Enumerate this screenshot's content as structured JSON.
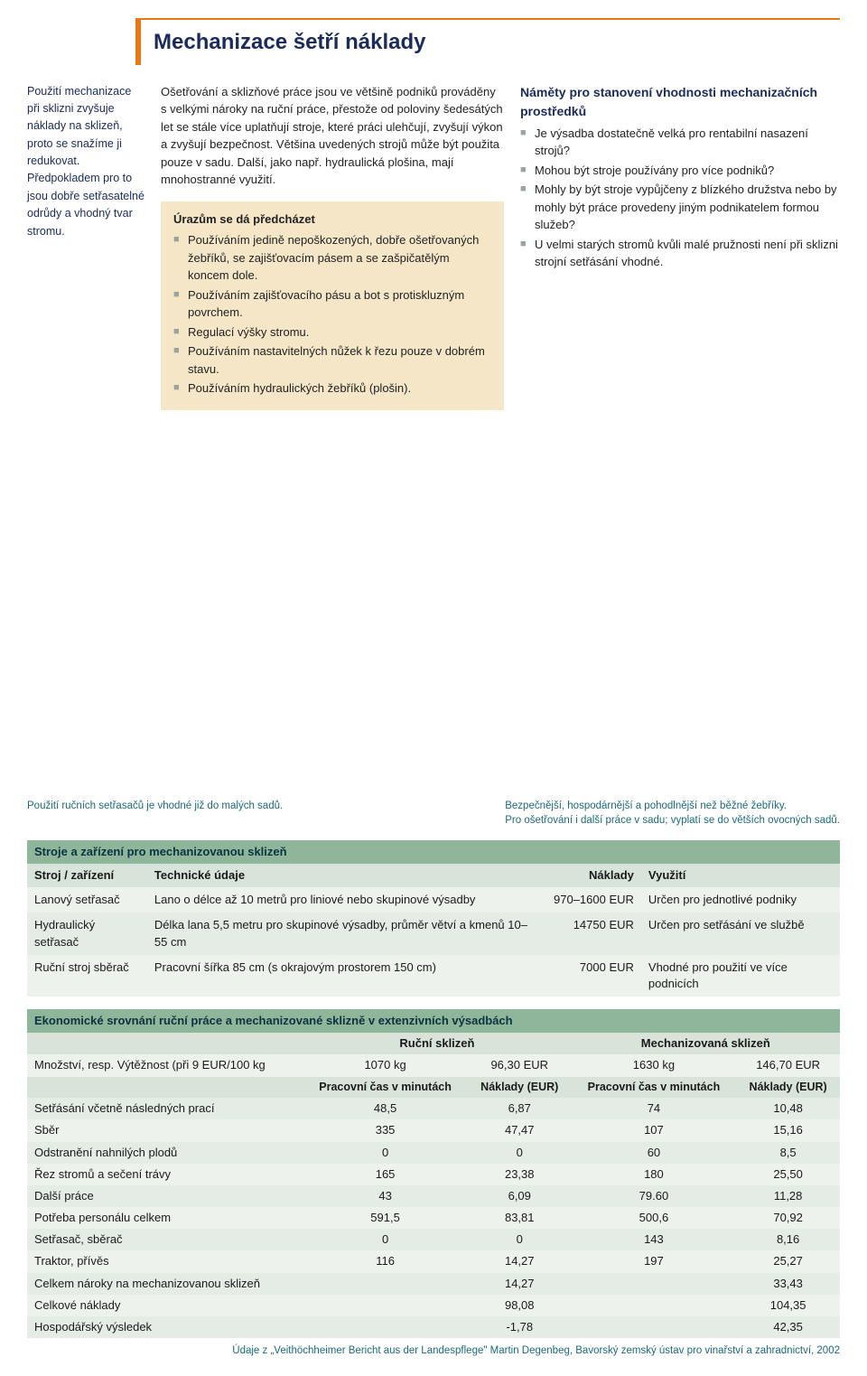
{
  "title": "Mechanizace šetří náklady",
  "sidebar_intro": "Použití mechanizace při sklizni zvyšuje náklady na sklizeň, proto se snažíme ji redukovat. Předpokladem pro to jsou dobře setřasatelné odrůdy a vhodný tvar stromu.",
  "mid_para": "Ošetřování a sklizňové práce jsou ve většině podniků prováděny s velkými nároky na ruční práce, přestože od poloviny šedesátých let se stále více uplatňují stroje, které práci ulehčují, zvyšují výkon a zvyšují bezpečnost. Většina uvedených strojů může být použita pouze v sadu. Další, jako např. hydraulická plošina, mají mnohostranné využití.",
  "box": {
    "heading": "Úrazům se dá předcházet",
    "items": [
      "Používáním jedině nepoškozených, dobře ošetřovaných žebříků, se zajišťovacím pásem a se zašpičatělým koncem dole.",
      "Používáním zajišťovacího pásu a bot s protiskluzným povrchem.",
      "Regulací výšky stromu.",
      "Používáním nastavitelných nůžek k řezu pouze v dobrém stavu.",
      "Používáním hydraulických žebříků (plošin)."
    ]
  },
  "right": {
    "heading": "Náměty pro stanovení vhodnosti mechanizačních prostředků",
    "items": [
      "Je výsadba dostatečně velká pro rentabilní nasazení strojů?",
      "Mohou být stroje používány pro více podniků?",
      "Mohly by být stroje vypůjčeny z blízkého družstva nebo by mohly být práce provedeny jiným podnikatelem formou služeb?",
      "U velmi starých stromů kvůli malé pružnosti není při sklizni strojní setřásání vhodné."
    ]
  },
  "caption_left": "Použití ručních setřasačů je vhodné již do malých sadů.",
  "caption_right_1": "Bezpečnější, hospodárnější a pohodlnější než běžné žebříky.",
  "caption_right_2": "Pro ošetřování i další práce v sadu; vyplatí se do větších ovocných sadů.",
  "table1": {
    "title": "Stroje a zařízení pro mechanizovanou sklizeň",
    "cols": [
      "Stroj / zařízení",
      "Technické údaje",
      "Náklady",
      "Využití"
    ],
    "rows": [
      [
        "Lanový setřasač",
        "Lano o délce až 10 metrů pro liniové nebo skupinové výsadby",
        "970–1600 EUR",
        "Určen pro jednotlivé podniky"
      ],
      [
        "Hydraulický setřasač",
        "Délka lana 5,5 metru pro skupinové výsadby, průměr větví a kmenů 10–55 cm",
        "14750 EUR",
        "Určen pro setřásání ve službě"
      ],
      [
        "Ruční stroj sběrač",
        "Pracovní šířka 85 cm (s okrajovým prostorem 150 cm)",
        "7000 EUR",
        "Vhodné pro použití ve více podnicích"
      ]
    ]
  },
  "table2": {
    "title": "Ekonomické srovnání ruční práce a mechanizované sklizně v extenzivních výsadbách",
    "group_headers": [
      "Ruční sklizeň",
      "Mechanizovaná sklizeň"
    ],
    "yield_label": "Množství, resp. Výtěžnost (při 9 EUR/100 kg",
    "yield_vals": [
      "1070 kg",
      "96,30 EUR",
      "1630 kg",
      "146,70 EUR"
    ],
    "sub_headers": [
      "Pracovní čas v minutách",
      "Náklady (EUR)",
      "Pracovní čas v minutách",
      "Náklady (EUR)"
    ],
    "rows": [
      [
        "Setřásání včetně následných prací",
        "48,5",
        "6,87",
        "74",
        "10,48"
      ],
      [
        "Sběr",
        "335",
        "47,47",
        "107",
        "15,16"
      ],
      [
        "Odstranění nahnilých plodů",
        "0",
        "0",
        "60",
        "8,5"
      ],
      [
        "Řez stromů a sečení trávy",
        "165",
        "23,38",
        "180",
        "25,50"
      ],
      [
        "Další práce",
        "43",
        "6,09",
        "79.60",
        "11,28"
      ],
      [
        "Potřeba personálu celkem",
        "591,5",
        "83,81",
        "500,6",
        "70,92"
      ],
      [
        "Setřasač, sběrač",
        "0",
        "0",
        "143",
        "8,16"
      ],
      [
        "Traktor, přívěs",
        "116",
        "14,27",
        "197",
        "25,27"
      ],
      [
        "Celkem nároky na mechanizovanou sklizeň",
        "",
        "14,27",
        "",
        "33,43"
      ],
      [
        "Celkové náklady",
        "",
        "98,08",
        "",
        "104,35"
      ],
      [
        "Hospodářský výsledek",
        "",
        "-1,78",
        "",
        "42,35"
      ]
    ]
  },
  "source": "Údaje z „Veithöchheimer Bericht aus der Landespflege\" Martin Degenbeg, Bavorský zemský ústav pro vinařství a zahradnictví, 2002",
  "colors": {
    "orange": "#e67817",
    "navy": "#1a2b5c",
    "teal": "#1a6b7a",
    "box_bg": "#f5e6c8",
    "th_bg": "#8fb59a",
    "th_sub": "#d8e3da",
    "row0": "#eef2ed",
    "row1": "#e5ece6",
    "bullet": "#9aa3a0"
  }
}
